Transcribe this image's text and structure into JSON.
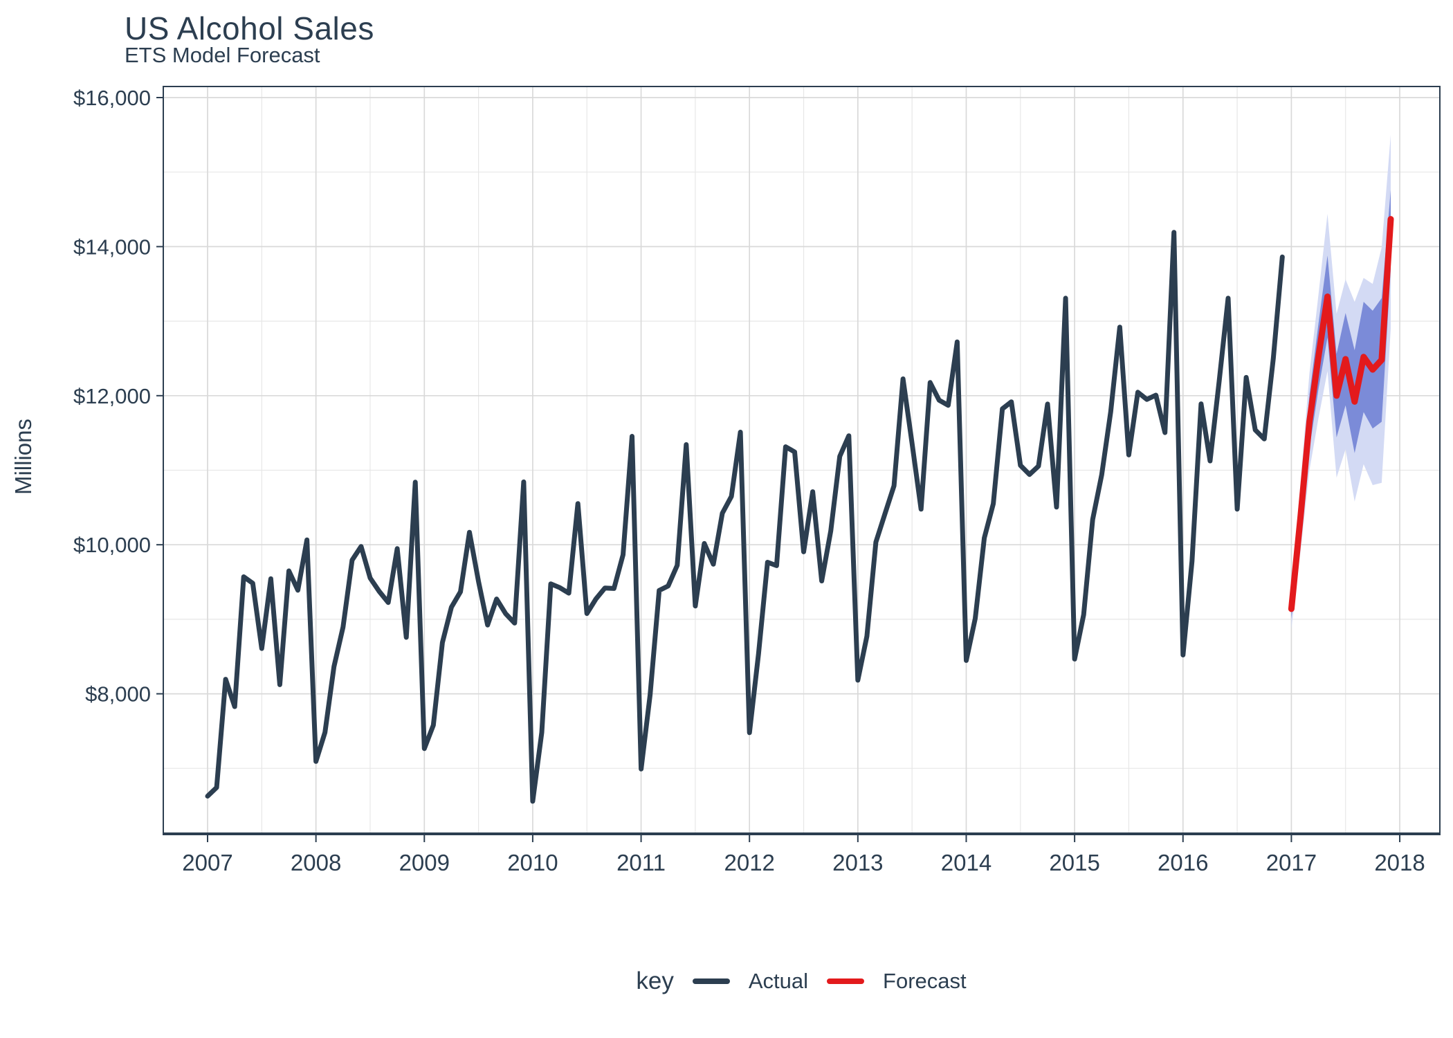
{
  "title": "US Alcohol Sales",
  "subtitle": "ETS Model Forecast",
  "y_axis": {
    "label": "Millions",
    "tick_labels": [
      "$16,000",
      "$14,000",
      "$12,000",
      "$10,000",
      "$8,000"
    ],
    "tick_values": [
      16000,
      14000,
      12000,
      10000,
      8000
    ],
    "minor_tick_values": [
      15000,
      13000,
      11000,
      9000,
      7000
    ]
  },
  "x_axis": {
    "tick_labels": [
      "2007",
      "2008",
      "2009",
      "2010",
      "2011",
      "2012",
      "2013",
      "2014",
      "2015",
      "2016",
      "2017",
      "2018"
    ],
    "tick_years": [
      2007,
      2008,
      2009,
      2010,
      2011,
      2012,
      2013,
      2014,
      2015,
      2016,
      2017,
      2018
    ]
  },
  "legend": {
    "title": "key",
    "items": [
      {
        "label": "Actual",
        "color": "#2c3e50"
      },
      {
        "label": "Forecast",
        "color": "#e31a1c"
      }
    ]
  },
  "colors": {
    "actual_line": "#2c3e50",
    "forecast_line": "#e31a1c",
    "ribbon_80": "#7b8bd8",
    "ribbon_95": "#d3daf4",
    "grid_major": "#d9d9d9",
    "grid_minor": "#e7e7e7",
    "panel_border": "#2c3e50",
    "text": "#2c3e50"
  },
  "chart_data": {
    "type": "line",
    "title": "US Alcohol Sales",
    "subtitle": "ETS Model Forecast",
    "xlabel": "",
    "ylabel": "Millions",
    "ylim": [
      6120,
      16150
    ],
    "xlim_years": [
      2006.6,
      2018.37
    ],
    "grid": "major+minor",
    "legend_position": "bottom",
    "frequency": "monthly",
    "series": [
      {
        "name": "Actual",
        "color": "#2c3e50",
        "start": "2007-01",
        "values": [
          6627,
          6743,
          8195,
          7828,
          9570,
          9484,
          8608,
          9543,
          8123,
          9649,
          9390,
          10065,
          7093,
          7483,
          8365,
          8895,
          9794,
          9977,
          9553,
          9375,
          9225,
          9948,
          8758,
          10839,
          7266,
          7578,
          8688,
          9162,
          9369,
          10167,
          9507,
          8923,
          9272,
          9075,
          8949,
          10843,
          6558,
          7481,
          9475,
          9424,
          9351,
          10552,
          9077,
          9273,
          9420,
          9413,
          9866,
          11455,
          6991,
          7986,
          9387,
          9448,
          9724,
          11344,
          9178,
          10017,
          9739,
          10423,
          10649,
          11511,
          7478,
          8537,
          9765,
          9720,
          11315,
          11245,
          9905,
          10711,
          9514,
          10185,
          11186,
          11462,
          8183,
          8772,
          10035,
          10415,
          10791,
          12226,
          11359,
          10477,
          12176,
          11940,
          11871,
          12721,
          8448,
          9011,
          10091,
          10551,
          11824,
          11917,
          11065,
          10942,
          11055,
          11888,
          10505,
          13308,
          8466,
          9061,
          10338,
          10940,
          11785,
          12920,
          11205,
          12046,
          11950,
          12007,
          11505,
          14192,
          8521,
          9779,
          11890,
          11124,
          12190,
          13308,
          10477,
          12245,
          11540,
          11420,
          12500,
          13862
        ]
      },
      {
        "name": "Forecast",
        "color": "#e31a1c",
        "start": "2017-01",
        "values": [
          9139,
          10360,
          11650,
          12530,
          13330,
          12000,
          12490,
          11920,
          12520,
          12350,
          12480,
          14370
        ],
        "ribbons": {
          "lo95": [
            8870,
            9900,
            11000,
            11700,
            12330,
            10900,
            11280,
            10580,
            11080,
            10800,
            10830,
            12900
          ],
          "lo80": [
            9010,
            10080,
            11290,
            12090,
            12780,
            11440,
            11870,
            11230,
            11780,
            11560,
            11650,
            13700
          ],
          "hi80": [
            9270,
            10640,
            12010,
            12970,
            13880,
            12560,
            13110,
            12610,
            13260,
            13140,
            13310,
            14760
          ],
          "hi95": [
            9410,
            10820,
            12300,
            13360,
            14440,
            13100,
            13560,
            13260,
            13580,
            13500,
            13990,
            15500
          ]
        }
      }
    ]
  }
}
